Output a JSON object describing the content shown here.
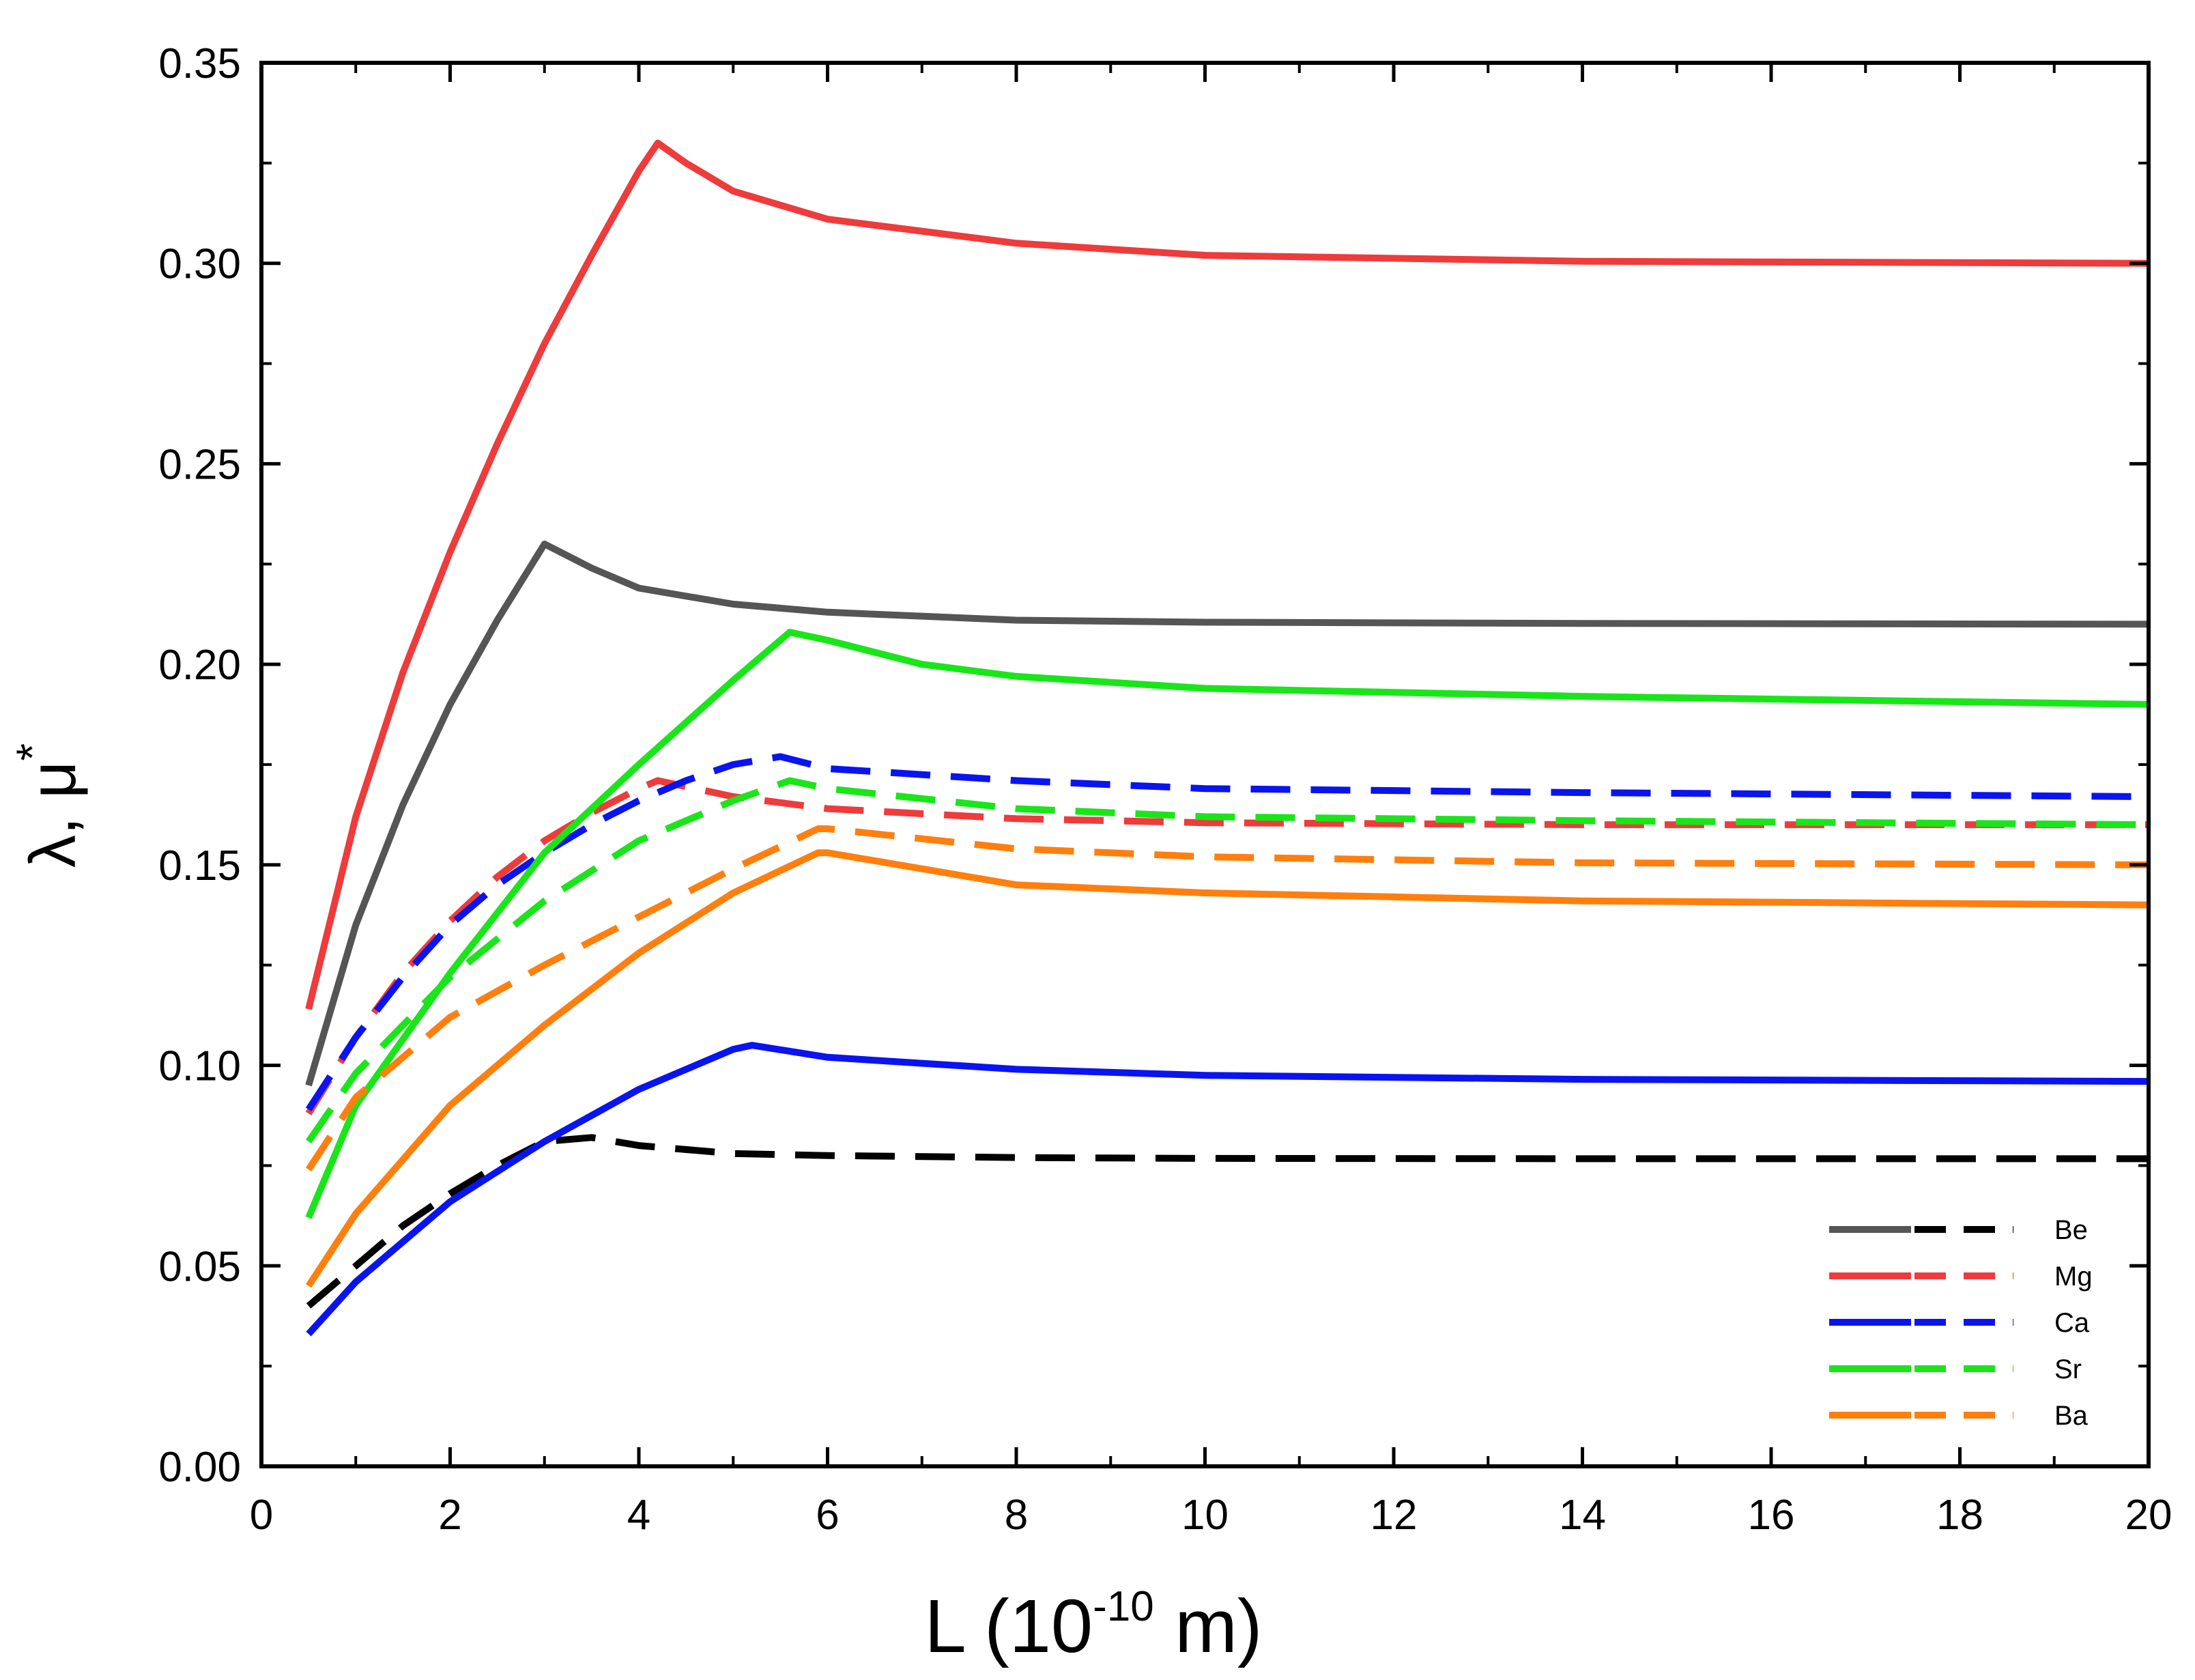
{
  "chart_data": {
    "type": "line",
    "title": "",
    "xlabel": {
      "main": "L  (10",
      "exp": "-10",
      "unit": " m)"
    },
    "ylabel": {
      "main": "λ, μ",
      "sup": "*"
    },
    "xlim": [
      0,
      20
    ],
    "ylim": [
      0,
      0.35
    ],
    "xticks": [
      0,
      2,
      4,
      6,
      8,
      10,
      12,
      14,
      16,
      18,
      20
    ],
    "xtick_labels": [
      "0",
      "2",
      "4",
      "6",
      "8",
      "10",
      "12",
      "14",
      "16",
      "18",
      "20"
    ],
    "yticks": [
      0,
      0.05,
      0.1,
      0.15,
      0.2,
      0.25,
      0.3,
      0.35
    ],
    "ytick_labels": [
      "0.00",
      "0.05",
      "0.10",
      "0.15",
      "0.20",
      "0.25",
      "0.30",
      "0.35"
    ],
    "legend_position": "bottom-right",
    "series": [
      {
        "name": "Be",
        "color": "#555555",
        "style": "solid",
        "x": [
          0.5,
          1.0,
          1.5,
          2.0,
          2.5,
          3.0,
          3.5,
          4.0,
          5.0,
          6.0,
          8.0,
          10.0,
          14.0,
          20.0
        ],
        "y": [
          0.095,
          0.135,
          0.165,
          0.19,
          0.211,
          0.23,
          0.224,
          0.219,
          0.215,
          0.213,
          0.211,
          0.2105,
          0.2102,
          0.21
        ]
      },
      {
        "name": "Be",
        "color": "#000000",
        "style": "dashed",
        "x": [
          0.5,
          1.0,
          1.5,
          2.0,
          2.5,
          3.0,
          3.5,
          4.0,
          5.0,
          6.0,
          8.0,
          10.0,
          14.0,
          20.0
        ],
        "y": [
          0.04,
          0.05,
          0.06,
          0.068,
          0.075,
          0.081,
          0.082,
          0.08,
          0.078,
          0.0775,
          0.077,
          0.0768,
          0.0767,
          0.0767
        ]
      },
      {
        "name": "Mg",
        "color": "#ee3b3b",
        "style": "solid",
        "x": [
          0.5,
          1.0,
          1.5,
          2.0,
          2.5,
          3.0,
          3.5,
          4.0,
          4.2,
          4.5,
          5.0,
          6.0,
          8.0,
          10.0,
          14.0,
          20.0
        ],
        "y": [
          0.114,
          0.162,
          0.198,
          0.228,
          0.255,
          0.28,
          0.302,
          0.323,
          0.33,
          0.325,
          0.318,
          0.311,
          0.305,
          0.302,
          0.3005,
          0.3
        ]
      },
      {
        "name": "Mg",
        "color": "#ee3b3b",
        "style": "dashed",
        "x": [
          0.5,
          1.0,
          1.5,
          2.0,
          2.5,
          3.0,
          3.5,
          4.0,
          4.2,
          5.0,
          6.0,
          8.0,
          10.0,
          14.0,
          20.0
        ],
        "y": [
          0.088,
          0.107,
          0.123,
          0.136,
          0.147,
          0.156,
          0.163,
          0.169,
          0.171,
          0.167,
          0.164,
          0.1615,
          0.1605,
          0.16,
          0.16
        ]
      },
      {
        "name": "Ca",
        "color": "#0a14f0",
        "style": "solid",
        "x": [
          0.5,
          1.0,
          2.0,
          3.0,
          4.0,
          5.0,
          5.2,
          6.0,
          8.0,
          10.0,
          14.0,
          20.0
        ],
        "y": [
          0.033,
          0.046,
          0.066,
          0.081,
          0.094,
          0.104,
          0.105,
          0.102,
          0.099,
          0.0975,
          0.0965,
          0.096
        ]
      },
      {
        "name": "Ca",
        "color": "#0a14f0",
        "style": "dashed",
        "x": [
          0.5,
          1.0,
          1.5,
          2.0,
          2.5,
          3.0,
          3.5,
          4.0,
          4.5,
          5.0,
          5.5,
          6.0,
          8.0,
          10.0,
          14.0,
          20.0
        ],
        "y": [
          0.089,
          0.107,
          0.122,
          0.135,
          0.145,
          0.153,
          0.16,
          0.166,
          0.171,
          0.175,
          0.177,
          0.174,
          0.171,
          0.169,
          0.168,
          0.167
        ]
      },
      {
        "name": "Sr",
        "color": "#19e619",
        "style": "solid",
        "x": [
          0.5,
          1.0,
          2.0,
          3.0,
          4.0,
          5.0,
          5.6,
          6.0,
          7.0,
          8.0,
          10.0,
          14.0,
          20.0
        ],
        "y": [
          0.062,
          0.09,
          0.123,
          0.153,
          0.175,
          0.196,
          0.208,
          0.206,
          0.2,
          0.197,
          0.194,
          0.192,
          0.19
        ]
      },
      {
        "name": "Sr",
        "color": "#19e619",
        "style": "dashed",
        "x": [
          0.5,
          1.0,
          2.0,
          3.0,
          4.0,
          5.0,
          5.6,
          6.0,
          8.0,
          10.0,
          14.0,
          20.0
        ],
        "y": [
          0.081,
          0.098,
          0.122,
          0.141,
          0.156,
          0.166,
          0.171,
          0.169,
          0.164,
          0.162,
          0.161,
          0.16
        ]
      },
      {
        "name": "Ba",
        "color": "#ff7f0e",
        "style": "solid",
        "x": [
          0.5,
          1.0,
          2.0,
          3.0,
          4.0,
          5.0,
          5.9,
          6.0,
          8.0,
          10.0,
          14.0,
          20.0
        ],
        "y": [
          0.045,
          0.063,
          0.09,
          0.11,
          0.128,
          0.143,
          0.153,
          0.153,
          0.145,
          0.143,
          0.141,
          0.14
        ]
      },
      {
        "name": "Ba",
        "color": "#ff7f0e",
        "style": "dashed",
        "x": [
          0.5,
          1.0,
          2.0,
          3.0,
          4.0,
          5.0,
          5.9,
          6.0,
          8.0,
          10.0,
          14.0,
          20.0
        ],
        "y": [
          0.074,
          0.092,
          0.112,
          0.125,
          0.137,
          0.149,
          0.159,
          0.159,
          0.154,
          0.152,
          0.1505,
          0.15
        ]
      }
    ],
    "legend": [
      {
        "label": "Be",
        "solid_color": "#555555",
        "dashed_color": "#000000"
      },
      {
        "label": "Mg",
        "solid_color": "#ee3b3b",
        "dashed_color": "#ee3b3b"
      },
      {
        "label": "Ca",
        "solid_color": "#0a14f0",
        "dashed_color": "#0a14f0"
      },
      {
        "label": "Sr",
        "solid_color": "#19e619",
        "dashed_color": "#19e619"
      },
      {
        "label": "Ba",
        "solid_color": "#ff7f0e",
        "dashed_color": "#ff7f0e"
      }
    ]
  }
}
